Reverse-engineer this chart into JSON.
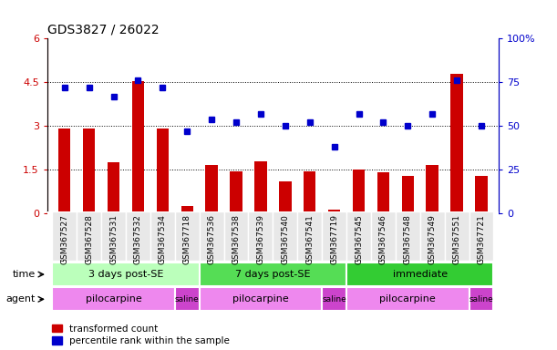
{
  "title": "GDS3827 / 26022",
  "samples": [
    "GSM367527",
    "GSM367528",
    "GSM367531",
    "GSM367532",
    "GSM367534",
    "GSM367718",
    "GSM367536",
    "GSM367538",
    "GSM367539",
    "GSM367540",
    "GSM367541",
    "GSM367719",
    "GSM367545",
    "GSM367546",
    "GSM367548",
    "GSM367549",
    "GSM367551",
    "GSM367721"
  ],
  "red_values": [
    2.9,
    2.9,
    1.75,
    4.55,
    2.9,
    0.25,
    1.65,
    1.45,
    1.8,
    1.1,
    1.45,
    0.12,
    1.5,
    1.4,
    1.3,
    1.65,
    4.8,
    1.3
  ],
  "blue_values_pct": [
    72,
    72,
    67,
    76,
    72,
    47,
    54,
    52,
    57,
    50,
    52,
    38,
    57,
    52,
    50,
    57,
    76,
    50
  ],
  "red_color": "#cc0000",
  "blue_color": "#0000cc",
  "ylim_left": [
    0,
    6
  ],
  "ylim_right": [
    0,
    100
  ],
  "yticks_left": [
    0,
    1.5,
    3.0,
    4.5,
    6.0
  ],
  "yticks_right": [
    0,
    25,
    50,
    75,
    100
  ],
  "ytick_labels_left": [
    "0",
    "1.5",
    "3",
    "4.5",
    "6"
  ],
  "ytick_labels_right": [
    "0",
    "25",
    "50",
    "75",
    "100%"
  ],
  "hlines": [
    1.5,
    3.0,
    4.5
  ],
  "time_groups": [
    {
      "label": "3 days post-SE",
      "start": 0,
      "end": 5,
      "color": "#bbffbb"
    },
    {
      "label": "7 days post-SE",
      "start": 6,
      "end": 11,
      "color": "#55dd55"
    },
    {
      "label": "immediate",
      "start": 12,
      "end": 17,
      "color": "#33cc33"
    }
  ],
  "agent_groups": [
    {
      "label": "pilocarpine",
      "start": 0,
      "end": 4,
      "color": "#ee88ee"
    },
    {
      "label": "saline",
      "start": 5,
      "end": 5,
      "color": "#cc44cc"
    },
    {
      "label": "pilocarpine",
      "start": 6,
      "end": 10,
      "color": "#ee88ee"
    },
    {
      "label": "saline",
      "start": 11,
      "end": 11,
      "color": "#cc44cc"
    },
    {
      "label": "pilocarpine",
      "start": 12,
      "end": 16,
      "color": "#ee88ee"
    },
    {
      "label": "saline",
      "start": 17,
      "end": 17,
      "color": "#cc44cc"
    }
  ],
  "legend_red": "transformed count",
  "legend_blue": "percentile rank within the sample",
  "time_label": "time",
  "agent_label": "agent",
  "bar_width": 0.5,
  "bg_color": "#f0f0f0"
}
